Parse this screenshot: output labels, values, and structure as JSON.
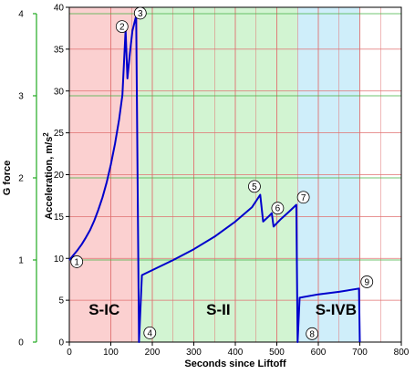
{
  "chart_data": {
    "type": "line",
    "title": "",
    "xlabel": "Seconds since Liftoff",
    "ylabel": "Acceleration, m/s",
    "ylabel_superscript": "2",
    "y2label": "G force",
    "xlim": [
      0,
      800
    ],
    "ylim": [
      0,
      40
    ],
    "y2lim": [
      0,
      4
    ],
    "x_ticks": [
      "0",
      "100",
      "200",
      "300",
      "400",
      "500",
      "600",
      "700",
      "800"
    ],
    "y_ticks": [
      "0",
      "5",
      "10",
      "15",
      "20",
      "25",
      "30",
      "35",
      "40"
    ],
    "y2_ticks": [
      "0",
      "1",
      "2",
      "3",
      "4"
    ],
    "grid": true,
    "colors": {
      "line": "#0000cc",
      "grid_red": "#e07070",
      "grid_green": "#40b040",
      "g_axis": "#22aa22"
    },
    "stages": [
      {
        "name": "S-IC",
        "x_start": 0,
        "x_end": 168,
        "color": "#fbd0d0"
      },
      {
        "name": "S-II",
        "x_start": 168,
        "x_end": 550,
        "color": "#d2f4d2"
      },
      {
        "name": "S-IVB",
        "x_start": 550,
        "x_end": 700,
        "color": "#cfeefa"
      }
    ],
    "series": [
      {
        "points": [
          [
            0,
            9.8
          ],
          [
            10,
            10.4
          ],
          [
            20,
            11.0
          ],
          [
            30,
            11.7
          ],
          [
            40,
            12.5
          ],
          [
            50,
            13.4
          ],
          [
            60,
            14.5
          ],
          [
            70,
            15.8
          ],
          [
            80,
            17.3
          ],
          [
            90,
            19.1
          ],
          [
            100,
            21.2
          ],
          [
            110,
            23.7
          ],
          [
            120,
            26.6
          ],
          [
            128,
            29.5
          ],
          [
            135.5,
            37.3
          ],
          [
            140,
            31.5
          ],
          [
            146,
            34.5
          ],
          [
            152,
            37.2
          ],
          [
            161,
            39.0
          ],
          [
            168,
            0
          ],
          [
            175,
            8.0
          ],
          [
            200,
            8.6
          ],
          [
            250,
            9.8
          ],
          [
            300,
            11.1
          ],
          [
            350,
            12.6
          ],
          [
            400,
            14.4
          ],
          [
            440,
            16.1
          ],
          [
            460,
            17.6
          ],
          [
            467,
            14.4
          ],
          [
            480,
            15.0
          ],
          [
            488,
            15.4
          ],
          [
            492,
            13.8
          ],
          [
            510,
            14.7
          ],
          [
            530,
            15.6
          ],
          [
            547,
            16.4
          ],
          [
            550,
            0
          ],
          [
            555,
            5.3
          ],
          [
            600,
            5.7
          ],
          [
            650,
            6.0
          ],
          [
            698,
            6.4
          ],
          [
            700,
            0
          ]
        ]
      }
    ],
    "annotations": [
      {
        "label": "1",
        "x": 18,
        "y": 9.6
      },
      {
        "label": "2",
        "x": 127,
        "y": 37.7
      },
      {
        "label": "3",
        "x": 171,
        "y": 39.3
      },
      {
        "label": "4",
        "x": 194,
        "y": 1.1
      },
      {
        "label": "5",
        "x": 446,
        "y": 18.6
      },
      {
        "label": "6",
        "x": 502,
        "y": 16.0
      },
      {
        "label": "7",
        "x": 564,
        "y": 17.3
      },
      {
        "label": "8",
        "x": 585,
        "y": 1.0
      },
      {
        "label": "9",
        "x": 717,
        "y": 7.2
      }
    ]
  }
}
